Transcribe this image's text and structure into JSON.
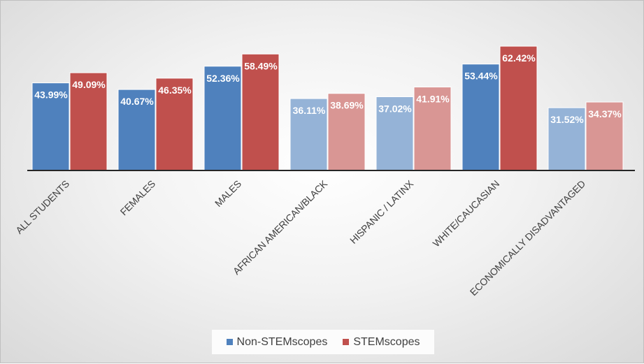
{
  "chart_data": {
    "type": "bar",
    "categories": [
      "ALL STUDENTS",
      "FEMALES",
      "MALES",
      "AFRICAN AMERICAN/BLACK",
      "HISPANIC / LATINX",
      "WHITE/CAUCASIAN",
      "ECONOMICALLY DISADVANTAGED"
    ],
    "series": [
      {
        "name": "Non-STEMscopes",
        "values": [
          43.99,
          40.67,
          52.36,
          36.11,
          37.02,
          53.44,
          31.52
        ],
        "labels": [
          "43.99%",
          "40.67%",
          "52.36%",
          "36.11%",
          "37.02%",
          "53.44%",
          "31.52%"
        ],
        "color": "#4f81bd",
        "light_color": "#95b3d7"
      },
      {
        "name": "STEMscopes",
        "values": [
          49.09,
          46.35,
          58.49,
          38.69,
          41.91,
          62.42,
          34.37
        ],
        "labels": [
          "49.09%",
          "46.35%",
          "58.49%",
          "38.69%",
          "41.91%",
          "62.42%",
          "34.37%"
        ],
        "color": "#c0504d",
        "light_color": "#d99694"
      }
    ],
    "highlighted_categories": [
      true,
      true,
      true,
      false,
      false,
      true,
      false
    ],
    "ylim": [
      0,
      70
    ],
    "grid": false,
    "legend_position": "bottom",
    "title": "",
    "xlabel": "",
    "ylabel": ""
  }
}
